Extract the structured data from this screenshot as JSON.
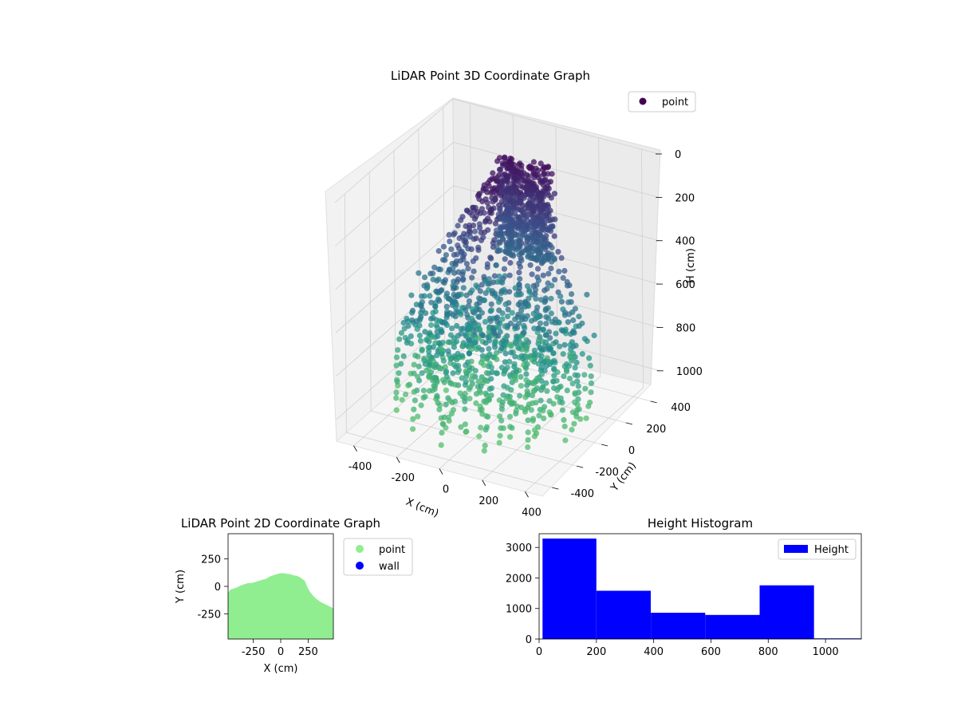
{
  "chart_data": [
    {
      "id": "scatter3d",
      "type": "scatter",
      "title": "LiDAR Point 3D Coordinate Graph",
      "xlabel": "X (cm)",
      "ylabel": "Y (cm)",
      "zlabel": "H (cm)",
      "xlim": [
        -480,
        480
      ],
      "ylim": [
        -480,
        480
      ],
      "zlim": [
        1100,
        0
      ],
      "x_ticks": [
        -400,
        -200,
        0,
        200,
        400
      ],
      "y_ticks": [
        -400,
        -200,
        0,
        200,
        400
      ],
      "z_ticks": [
        0,
        200,
        400,
        600,
        800,
        1000
      ],
      "colormap": [
        "#440154",
        "#3b528b",
        "#21918c",
        "#5ec962"
      ],
      "legend": [
        {
          "label": "point",
          "color": "#440154"
        }
      ],
      "legend_position": "top-right",
      "grid": true,
      "rays": 26,
      "ray_angle_range_deg": [
        -100,
        100
      ],
      "max_range_cm": 460
    },
    {
      "id": "scatter2d",
      "type": "scatter",
      "title": "LiDAR Point 2D Coordinate Graph",
      "xlabel": "X (cm)",
      "ylabel": "Y (cm)",
      "xlim": [
        -480,
        480
      ],
      "ylim": [
        -480,
        480
      ],
      "x_ticks": [
        -250,
        0,
        250
      ],
      "y_ticks": [
        -250,
        0,
        250
      ],
      "series": [
        {
          "name": "point",
          "color": "#90ee90"
        },
        {
          "name": "wall",
          "color": "#0000ff"
        }
      ],
      "boundary": {
        "x": [
          -480,
          -460,
          -430,
          -400,
          -360,
          -330,
          -300,
          -270,
          -230,
          -200,
          -170,
          -130,
          -100,
          -70,
          -40,
          0,
          30,
          60,
          90,
          120,
          150,
          180,
          220,
          240,
          260,
          290,
          320,
          360,
          400,
          440,
          480
        ],
        "y": [
          -60,
          -30,
          -20,
          -10,
          10,
          20,
          30,
          30,
          40,
          50,
          60,
          70,
          90,
          100,
          110,
          120,
          120,
          115,
          110,
          100,
          95,
          80,
          50,
          0,
          -40,
          -80,
          -110,
          -140,
          -160,
          -180,
          -200
        ]
      },
      "legend_position": "outside-right"
    },
    {
      "id": "histogram",
      "type": "bar",
      "title": "Height Histogram",
      "xlim": [
        0,
        1125
      ],
      "ylim": [
        0,
        3450
      ],
      "x_ticks": [
        0,
        200,
        400,
        600,
        800,
        1000
      ],
      "y_ticks": [
        0,
        1000,
        2000,
        3000
      ],
      "bin_edges": [
        12,
        200,
        390,
        580,
        770,
        960,
        1125
      ],
      "series": [
        {
          "name": "Height",
          "values": [
            3290,
            1580,
            860,
            790,
            1760,
            20
          ],
          "color": "#0000ff"
        }
      ],
      "legend_position": "top-right"
    }
  ]
}
